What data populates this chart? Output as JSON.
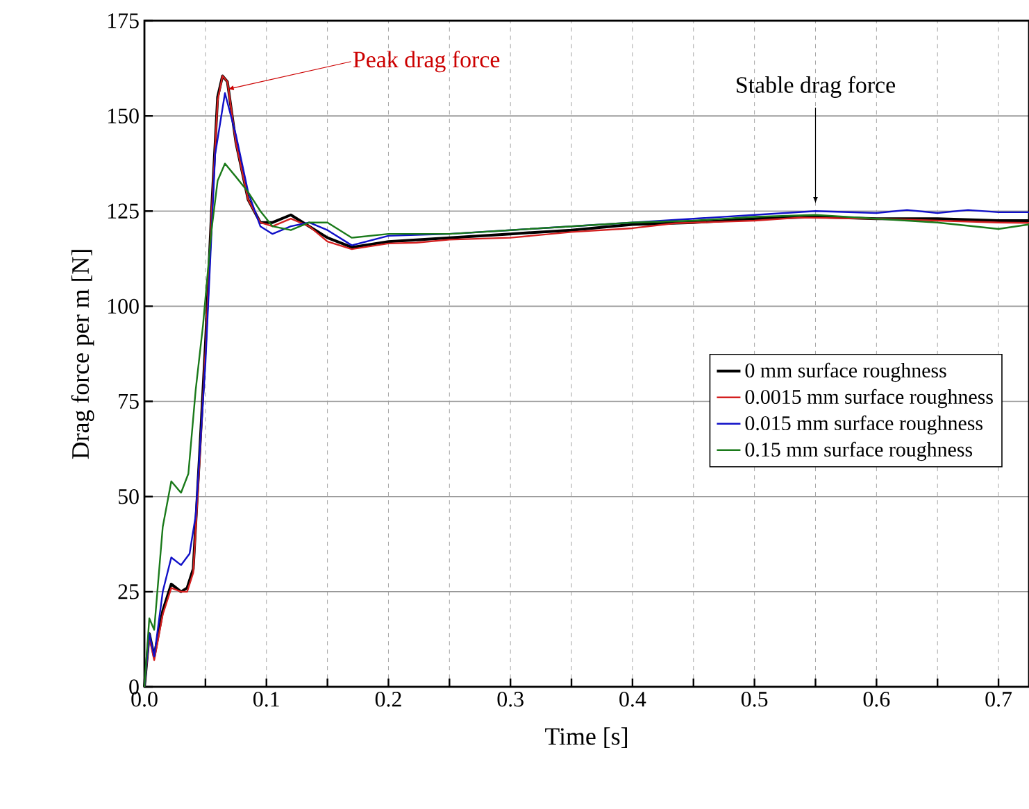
{
  "chart_data": {
    "type": "line",
    "xlabel": "Time [s]",
    "ylabel": "Drag force per m [N]",
    "xlim": [
      0,
      0.725
    ],
    "ylim": [
      0,
      175
    ],
    "xticks": [
      {
        "value": 0,
        "label": "0.0"
      },
      0.1,
      0.2,
      0.3,
      0.4,
      0.5,
      0.6,
      0.7
    ],
    "yticks": [
      0,
      25,
      50,
      75,
      100,
      125,
      150,
      175
    ],
    "grid": true,
    "legend": "right",
    "line_style": "solid",
    "marker": "none",
    "annotations": [
      {
        "text": "Peak drag force",
        "x": 0.068,
        "y": 157
      },
      {
        "text": "Stable drag force",
        "x": 0.55,
        "y": 127
      }
    ],
    "series": [
      {
        "name": "0 mm surface roughness",
        "color": "#000000",
        "x": [
          0,
          0.004,
          0.008,
          0.015,
          0.022,
          0.03,
          0.035,
          0.04,
          0.045,
          0.05,
          0.055,
          0.06,
          0.064,
          0.068,
          0.075,
          0.085,
          0.095,
          0.105,
          0.12,
          0.135,
          0.15,
          0.17,
          0.2,
          0.25,
          0.3,
          0.35,
          0.4,
          0.45,
          0.5,
          0.55,
          0.6,
          0.65,
          0.7,
          0.725
        ],
        "values": [
          0,
          14,
          8,
          20,
          27,
          25,
          26,
          31,
          60,
          90,
          125,
          155,
          160.5,
          159,
          143,
          128,
          122,
          122,
          124,
          121,
          118,
          115.5,
          117,
          118,
          119,
          120,
          121.5,
          122,
          123,
          123.5,
          123,
          123,
          122.5,
          122.5
        ]
      },
      {
        "name": "0.0015 mm surface roughness",
        "color": "#d42020",
        "x": [
          0,
          0.004,
          0.008,
          0.015,
          0.022,
          0.03,
          0.035,
          0.04,
          0.045,
          0.05,
          0.055,
          0.06,
          0.064,
          0.068,
          0.075,
          0.085,
          0.095,
          0.105,
          0.12,
          0.135,
          0.15,
          0.17,
          0.2,
          0.223,
          0.25,
          0.3,
          0.35,
          0.4,
          0.435,
          0.5,
          0.537,
          0.6,
          0.65,
          0.7,
          0.725
        ],
        "values": [
          0,
          13,
          7,
          19,
          26,
          25,
          25,
          30,
          58,
          88,
          124,
          154,
          160.5,
          159,
          143,
          128,
          122,
          121,
          123,
          121,
          117,
          115,
          116.5,
          116.7,
          117.5,
          118,
          119.5,
          120.5,
          121.8,
          122.5,
          123.3,
          123,
          122.5,
          122,
          121.9
        ]
      },
      {
        "name": "0.015 mm surface roughness",
        "color": "#1010c8",
        "x": [
          0,
          0.004,
          0.008,
          0.015,
          0.022,
          0.03,
          0.037,
          0.042,
          0.05,
          0.058,
          0.066,
          0.075,
          0.085,
          0.095,
          0.105,
          0.12,
          0.135,
          0.15,
          0.17,
          0.2,
          0.25,
          0.3,
          0.35,
          0.4,
          0.45,
          0.5,
          0.55,
          0.6,
          0.625,
          0.65,
          0.675,
          0.7,
          0.725
        ],
        "values": [
          0,
          14,
          8,
          25,
          34,
          32,
          35,
          45,
          85,
          140,
          156,
          145,
          130,
          121,
          119,
          121,
          122,
          120,
          116,
          118.5,
          119,
          120,
          121,
          122,
          123,
          124,
          125,
          124.5,
          125.3,
          124.5,
          125.3,
          124.7,
          124.7
        ]
      },
      {
        "name": "0.15 mm surface roughness",
        "color": "#1a7a1a",
        "x": [
          0,
          0.004,
          0.008,
          0.015,
          0.022,
          0.03,
          0.036,
          0.042,
          0.048,
          0.055,
          0.06,
          0.066,
          0.075,
          0.085,
          0.095,
          0.105,
          0.12,
          0.135,
          0.15,
          0.17,
          0.2,
          0.25,
          0.3,
          0.35,
          0.4,
          0.45,
          0.5,
          0.55,
          0.6,
          0.65,
          0.7,
          0.725
        ],
        "values": [
          0,
          18,
          15,
          42,
          54,
          51,
          56,
          78,
          95,
          120,
          133,
          137.5,
          134,
          130,
          125,
          121,
          120,
          122,
          122,
          118,
          119,
          119,
          120,
          121,
          122,
          122.5,
          123.5,
          124,
          123,
          122,
          120.3,
          121.5
        ]
      }
    ]
  }
}
